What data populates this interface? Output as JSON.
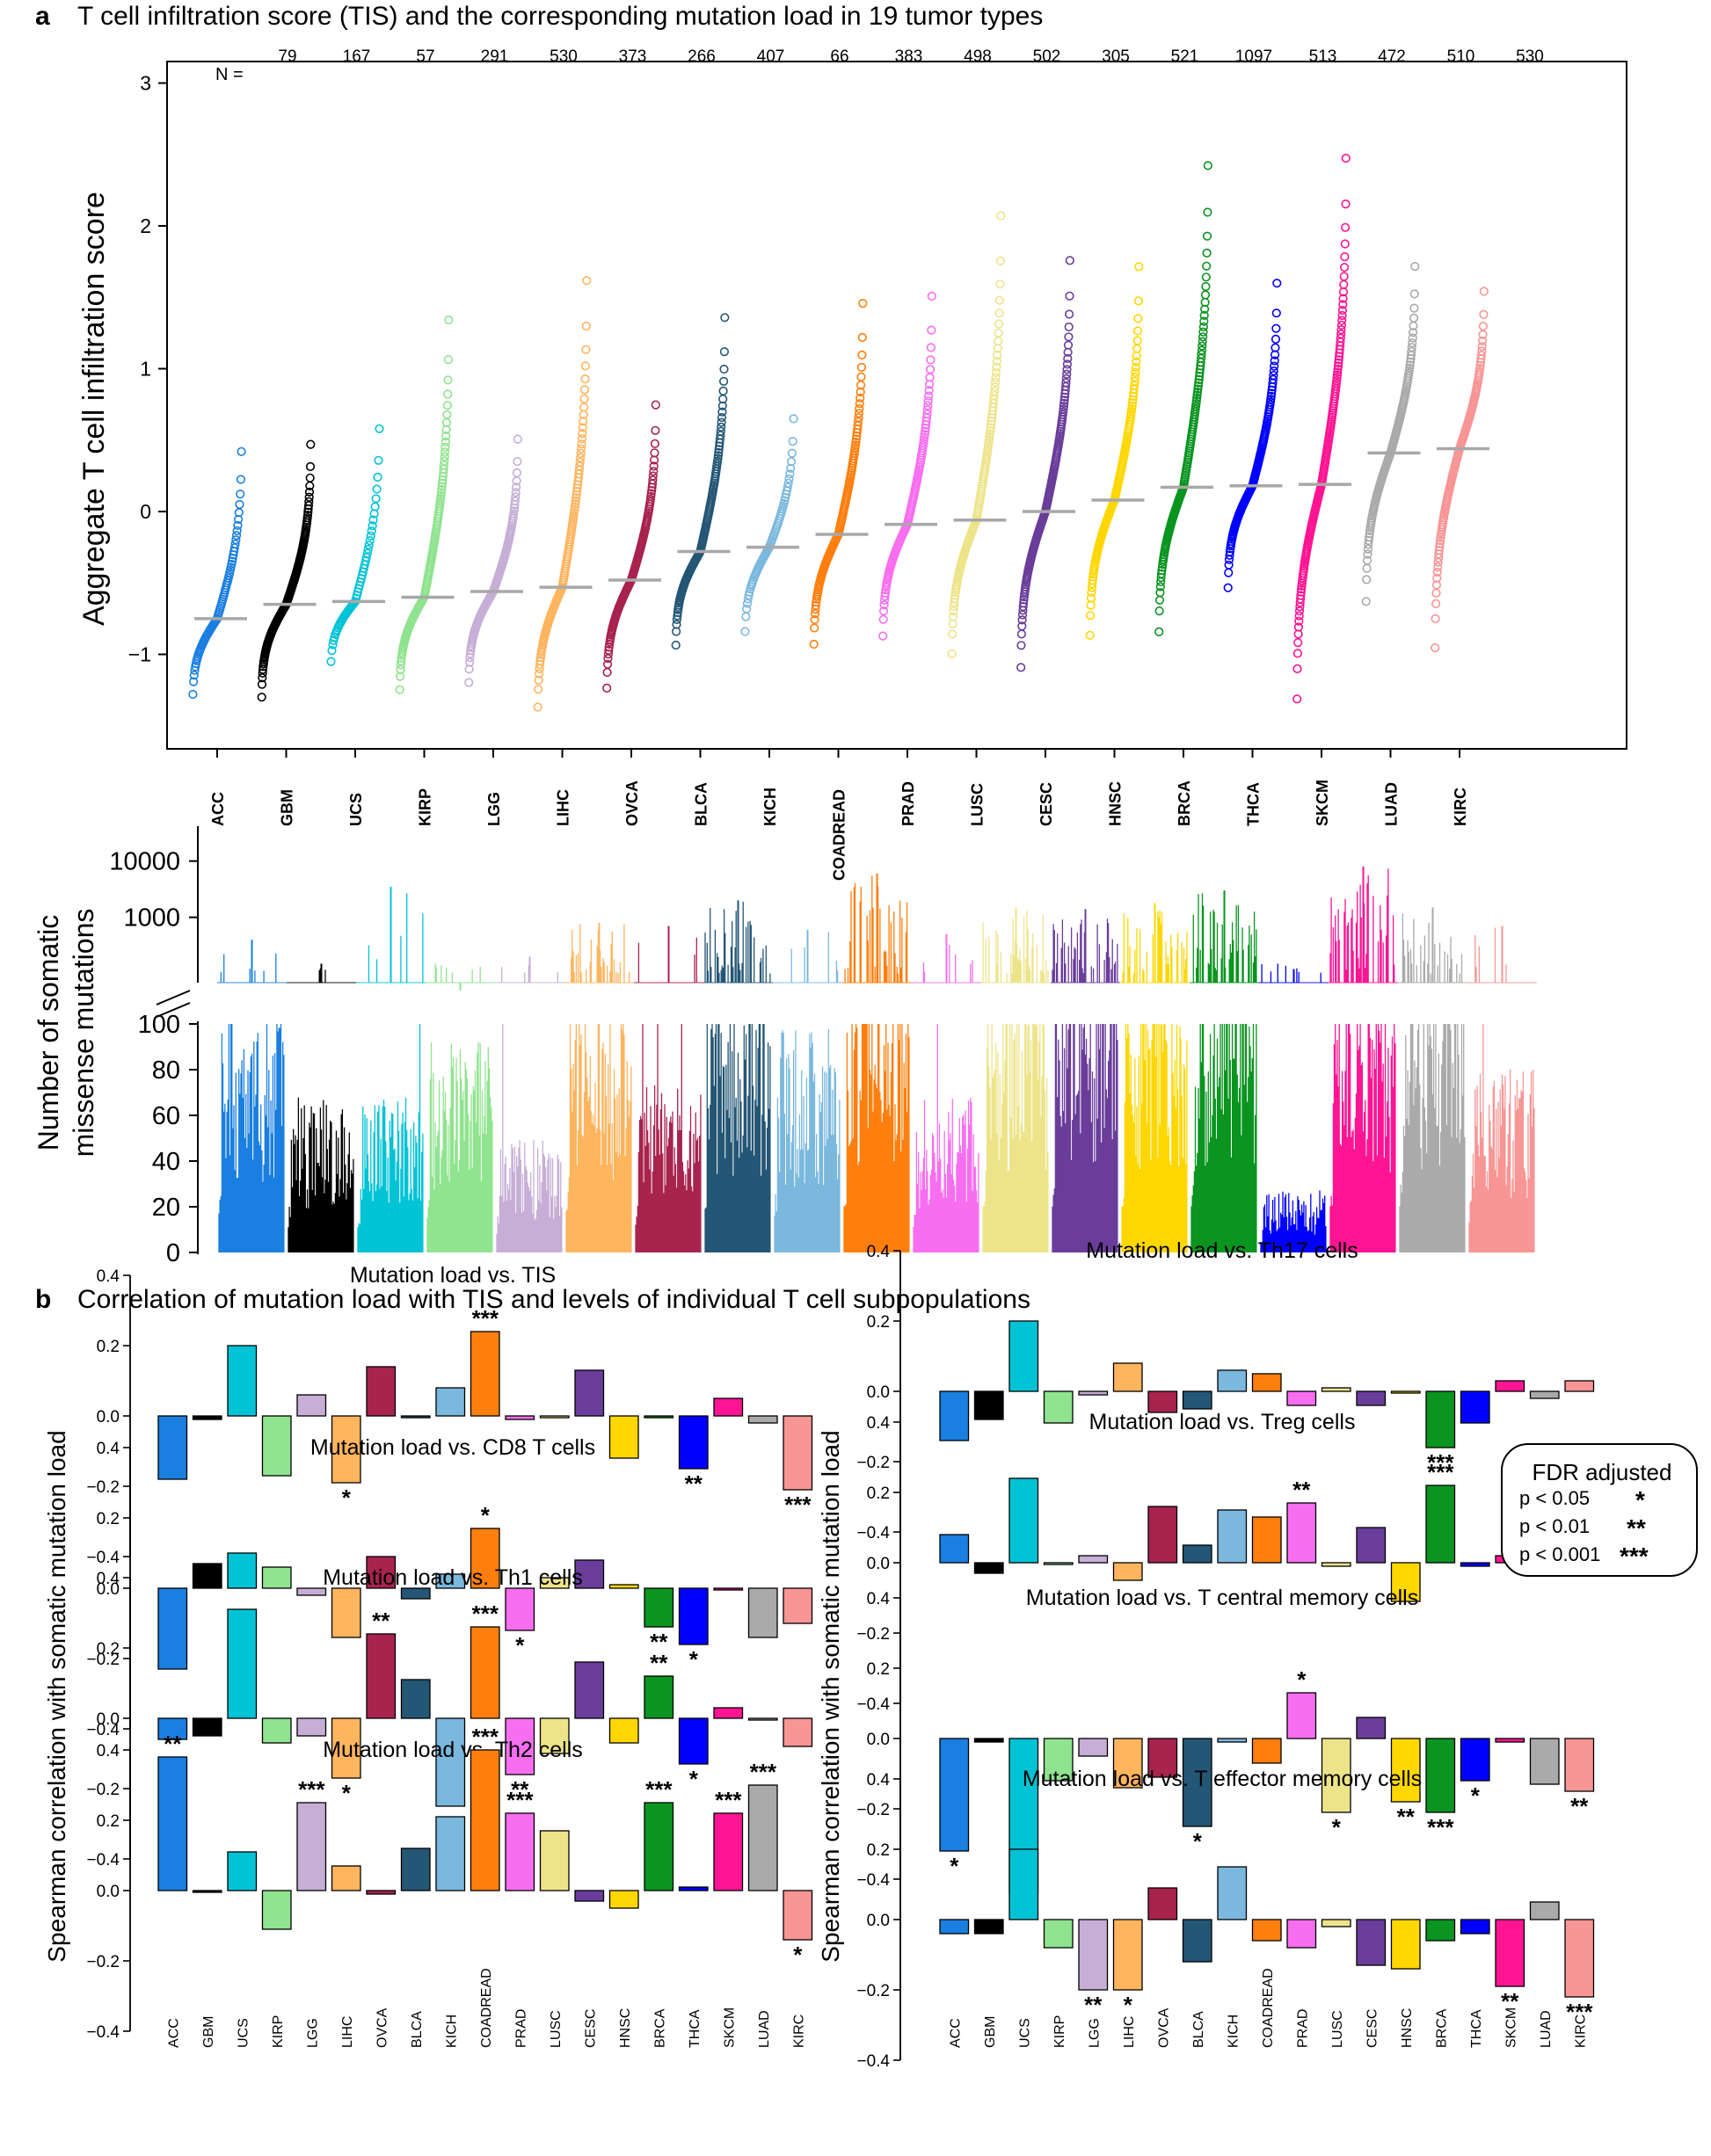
{
  "panel_a": {
    "letter": "a",
    "title": "T cell infiltration score (TIS) and the corresponding mutation load in 19 tumor types",
    "n_label": "N =",
    "ylabel": "Aggregate T cell infiltration score",
    "mut_ylabel_1": "Number of somatic",
    "mut_ylabel_2": "missense mutations"
  },
  "panel_b": {
    "letter": "b",
    "title": "Correlation of mutation load with TIS and levels of individual T cell subpopulations",
    "ylabel": "Spearman correlation with somatic mutation load",
    "legend": {
      "title": "FDR adjusted",
      "rows": [
        {
          "label": "p < 0.05",
          "sym": "*"
        },
        {
          "label": "p < 0.01",
          "sym": "**"
        },
        {
          "label": "p < 0.001",
          "sym": "***"
        }
      ]
    }
  },
  "chart_data": [
    {
      "type": "scatter",
      "title": "T cell infiltration score (TIS) and the corresponding mutation load in 19 tumor types",
      "ylabel": "Aggregate T cell infiltration score",
      "ylim": [
        -1.6,
        3.05
      ],
      "yticks": [
        -1,
        0,
        1,
        2,
        3
      ],
      "categories": [
        "ACC",
        "GBM",
        "UCS",
        "KIRP",
        "LGG",
        "LIHC",
        "OVCA",
        "BLCA",
        "KICH",
        "COADREAD",
        "PRAD",
        "LUSC",
        "CESC",
        "HNSC",
        "BRCA",
        "THCA",
        "SKCM",
        "LUAD",
        "KIRC"
      ],
      "n": [
        79,
        167,
        57,
        291,
        530,
        373,
        266,
        407,
        66,
        383,
        498,
        502,
        305,
        521,
        1097,
        513,
        472,
        510,
        530
      ],
      "colors": [
        "#1a7fe0",
        "#000000",
        "#00c3d6",
        "#90e38f",
        "#c6aed6",
        "#ffb45e",
        "#a8234e",
        "#245675",
        "#7ab8de",
        "#ff7f0e",
        "#f86ef0",
        "#ede48a",
        "#6a3d9a",
        "#ffd700",
        "#0a9420",
        "#0000ff",
        "#ff1493",
        "#aaaaaa",
        "#f89595"
      ],
      "medians": [
        -0.75,
        -0.65,
        -0.63,
        -0.6,
        -0.56,
        -0.53,
        -0.48,
        -0.28,
        -0.25,
        -0.16,
        -0.09,
        -0.06,
        0.0,
        0.08,
        0.17,
        0.18,
        0.19,
        0.41,
        0.44
      ],
      "mins": [
        -1.28,
        -1.3,
        -1.05,
        -1.3,
        -1.3,
        -1.48,
        -1.3,
        -1.02,
        -0.84,
        -1.03,
        -1.0,
        -1.15,
        -1.18,
        -1.02,
        -1.08,
        -0.65,
        -1.5,
        -0.8,
        -1.18
      ],
      "maxs": [
        0.42,
        0.47,
        0.58,
        1.5,
        0.68,
        1.9,
        0.85,
        1.57,
        0.65,
        1.67,
        1.77,
        2.42,
        1.9,
        1.98,
        2.95,
        1.83,
        2.76,
        1.93,
        1.72
      ]
    },
    {
      "type": "bar",
      "title": "",
      "ylabel": "Number of somatic missense mutations",
      "categories": [
        "ACC",
        "GBM",
        "UCS",
        "KIRP",
        "LGG",
        "LIHC",
        "OVCA",
        "BLCA",
        "KICH",
        "COADREAD",
        "PRAD",
        "LUSC",
        "CESC",
        "HNSC",
        "BRCA",
        "THCA",
        "SKCM",
        "LUAD",
        "KIRC"
      ],
      "lower_yticks": [
        0,
        20,
        40,
        60,
        80,
        100
      ],
      "upper_yticks": [
        1000,
        10000
      ],
      "upper_scale": "log",
      "typical_level": [
        85,
        55,
        55,
        75,
        40,
        90,
        60,
        95,
        80,
        100,
        55,
        100,
        100,
        100,
        100,
        22,
        100,
        100,
        65
      ],
      "peak": [
        400,
        150,
        3500,
        50,
        200,
        800,
        700,
        2000,
        600,
        6000,
        500,
        1500,
        1400,
        1800,
        3000,
        120,
        8000,
        1500,
        700
      ]
    },
    {
      "type": "bar",
      "title": "Mutation load vs. TIS",
      "ylim": [
        -0.4,
        0.4
      ],
      "categories": [
        "ACC",
        "GBM",
        "UCS",
        "KIRP",
        "LGG",
        "LIHC",
        "OVCA",
        "BLCA",
        "KICH",
        "COADREAD",
        "PRAD",
        "LUSC",
        "CESC",
        "HNSC",
        "BRCA",
        "THCA",
        "SKCM",
        "LUAD",
        "KIRC"
      ],
      "values": [
        -0.18,
        -0.01,
        0.2,
        -0.17,
        0.06,
        -0.19,
        0.14,
        0.0,
        0.08,
        0.24,
        -0.01,
        0.0,
        0.13,
        -0.12,
        0.0,
        -0.15,
        0.05,
        -0.02,
        -0.21
      ],
      "significance": [
        "",
        "",
        "",
        "",
        "",
        "*",
        "",
        "",
        "",
        "***",
        "",
        "",
        "",
        "",
        "",
        "**",
        "",
        "",
        "***"
      ]
    },
    {
      "type": "bar",
      "title": "Mutation load vs. CD8 T cells",
      "ylim": [
        -0.4,
        0.4
      ],
      "categories": [
        "ACC",
        "GBM",
        "UCS",
        "KIRP",
        "LGG",
        "LIHC",
        "OVCA",
        "BLCA",
        "KICH",
        "COADREAD",
        "PRAD",
        "LUSC",
        "CESC",
        "HNSC",
        "BRCA",
        "THCA",
        "SKCM",
        "LUAD",
        "KIRC"
      ],
      "values": [
        -0.23,
        0.07,
        0.1,
        0.06,
        -0.02,
        -0.14,
        0.09,
        -0.03,
        0.04,
        0.17,
        -0.12,
        0.03,
        0.08,
        0.01,
        -0.11,
        -0.16,
        0.0,
        -0.14,
        -0.1
      ],
      "significance": [
        "",
        "",
        "",
        "",
        "",
        "",
        "",
        "",
        "",
        "*",
        "*",
        "",
        "",
        "",
        "**",
        "*",
        "",
        "",
        ""
      ]
    },
    {
      "type": "bar",
      "title": "Mutation load vs. Th1 cells",
      "ylim": [
        -0.4,
        0.4
      ],
      "categories": [
        "ACC",
        "GBM",
        "UCS",
        "KIRP",
        "LGG",
        "LIHC",
        "OVCA",
        "BLCA",
        "KICH",
        "COADREAD",
        "PRAD",
        "LUSC",
        "CESC",
        "HNSC",
        "BRCA",
        "THCA",
        "SKCM",
        "LUAD",
        "KIRC"
      ],
      "values": [
        -0.06,
        -0.05,
        0.31,
        -0.07,
        -0.05,
        -0.17,
        0.24,
        0.11,
        -0.25,
        0.26,
        -0.16,
        -0.1,
        0.16,
        -0.07,
        0.12,
        -0.13,
        0.03,
        0.0,
        -0.08
      ],
      "significance": [
        "",
        "",
        "",
        "",
        "",
        "*",
        "**",
        "",
        "",
        "***",
        "**",
        "",
        "",
        "",
        "**",
        "*",
        "",
        "",
        ""
      ]
    },
    {
      "type": "bar",
      "title": "Mutation load vs. Th2 cells",
      "ylim": [
        -0.4,
        0.4
      ],
      "categories": [
        "ACC",
        "GBM",
        "UCS",
        "KIRP",
        "LGG",
        "LIHC",
        "OVCA",
        "BLCA",
        "KICH",
        "COADREAD",
        "PRAD",
        "LUSC",
        "CESC",
        "HNSC",
        "BRCA",
        "THCA",
        "SKCM",
        "LUAD",
        "KIRC"
      ],
      "values": [
        0.38,
        0.0,
        0.11,
        -0.11,
        0.25,
        0.07,
        -0.01,
        0.12,
        0.21,
        0.4,
        0.22,
        0.17,
        -0.03,
        -0.05,
        0.25,
        0.01,
        0.22,
        0.3,
        -0.14
      ],
      "significance": [
        "**",
        "",
        "",
        "",
        "***",
        "",
        "",
        "",
        "",
        "***",
        "***",
        "",
        "",
        "",
        "***",
        "",
        "***",
        "***",
        "*"
      ]
    },
    {
      "type": "bar",
      "title": "Mutation load vs. Th17 cells",
      "ylim": [
        -0.4,
        0.4
      ],
      "categories": [
        "ACC",
        "GBM",
        "UCS",
        "KIRP",
        "LGG",
        "LIHC",
        "OVCA",
        "BLCA",
        "KICH",
        "COADREAD",
        "PRAD",
        "LUSC",
        "CESC",
        "HNSC",
        "BRCA",
        "THCA",
        "SKCM",
        "LUAD",
        "KIRC"
      ],
      "values": [
        -0.14,
        -0.08,
        0.2,
        -0.09,
        -0.01,
        0.08,
        -0.06,
        -0.05,
        0.06,
        0.05,
        -0.04,
        0.01,
        -0.04,
        0.0,
        -0.16,
        -0.09,
        0.03,
        -0.02,
        0.03
      ],
      "significance": [
        "",
        "",
        "",
        "",
        "",
        "",
        "",
        "",
        "",
        "",
        "",
        "",
        "",
        "",
        "***",
        "",
        "",
        "",
        ""
      ]
    },
    {
      "type": "bar",
      "title": "Mutation load vs. Treg cells",
      "ylim": [
        -0.4,
        0.4
      ],
      "categories": [
        "ACC",
        "GBM",
        "UCS",
        "KIRP",
        "LGG",
        "LIHC",
        "OVCA",
        "BLCA",
        "KICH",
        "COADREAD",
        "PRAD",
        "LUSC",
        "CESC",
        "HNSC",
        "BRCA",
        "THCA",
        "SKCM",
        "LUAD",
        "KIRC"
      ],
      "values": [
        0.08,
        -0.03,
        0.24,
        0.0,
        0.02,
        -0.05,
        0.16,
        0.05,
        0.15,
        0.13,
        0.17,
        -0.01,
        0.1,
        -0.11,
        0.22,
        -0.01,
        0.02,
        0.06,
        0.01
      ],
      "significance": [
        "",
        "",
        "",
        "",
        "",
        "",
        "",
        "",
        "",
        "",
        "**",
        "",
        "",
        "",
        "***",
        "",
        "",
        "",
        ""
      ]
    },
    {
      "type": "bar",
      "title": "Mutation load vs. T central memory  cells",
      "ylim": [
        -0.4,
        0.4
      ],
      "categories": [
        "ACC",
        "GBM",
        "UCS",
        "KIRP",
        "LGG",
        "LIHC",
        "OVCA",
        "BLCA",
        "KICH",
        "COADREAD",
        "PRAD",
        "LUSC",
        "CESC",
        "HNSC",
        "BRCA",
        "THCA",
        "SKCM",
        "LUAD",
        "KIRC"
      ],
      "values": [
        -0.32,
        -0.01,
        -0.44,
        -0.12,
        -0.05,
        -0.14,
        -0.11,
        -0.25,
        -0.01,
        -0.07,
        0.13,
        -0.21,
        0.06,
        -0.18,
        -0.21,
        -0.12,
        -0.01,
        -0.13,
        -0.15
      ],
      "significance": [
        "*",
        "",
        "**",
        "",
        "",
        "",
        "",
        "*",
        "",
        "",
        "*",
        "*",
        "",
        "**",
        "***",
        "*",
        "",
        "",
        "**"
      ]
    },
    {
      "type": "bar",
      "title": "Mutation load vs. T effector memory cells",
      "ylim": [
        -0.4,
        0.4
      ],
      "categories": [
        "ACC",
        "GBM",
        "UCS",
        "KIRP",
        "LGG",
        "LIHC",
        "OVCA",
        "BLCA",
        "KICH",
        "COADREAD",
        "PRAD",
        "LUSC",
        "CESC",
        "HNSC",
        "BRCA",
        "THCA",
        "SKCM",
        "LUAD",
        "KIRC"
      ],
      "values": [
        -0.04,
        -0.04,
        0.2,
        -0.08,
        -0.2,
        -0.2,
        0.09,
        -0.12,
        0.15,
        -0.06,
        -0.08,
        -0.02,
        -0.13,
        -0.14,
        -0.06,
        -0.04,
        -0.19,
        0.05,
        -0.22
      ],
      "significance": [
        "",
        "",
        "",
        "",
        "**",
        "*",
        "",
        "",
        "",
        "",
        "",
        "",
        "",
        "",
        "",
        "",
        "**",
        "",
        "***"
      ]
    }
  ]
}
